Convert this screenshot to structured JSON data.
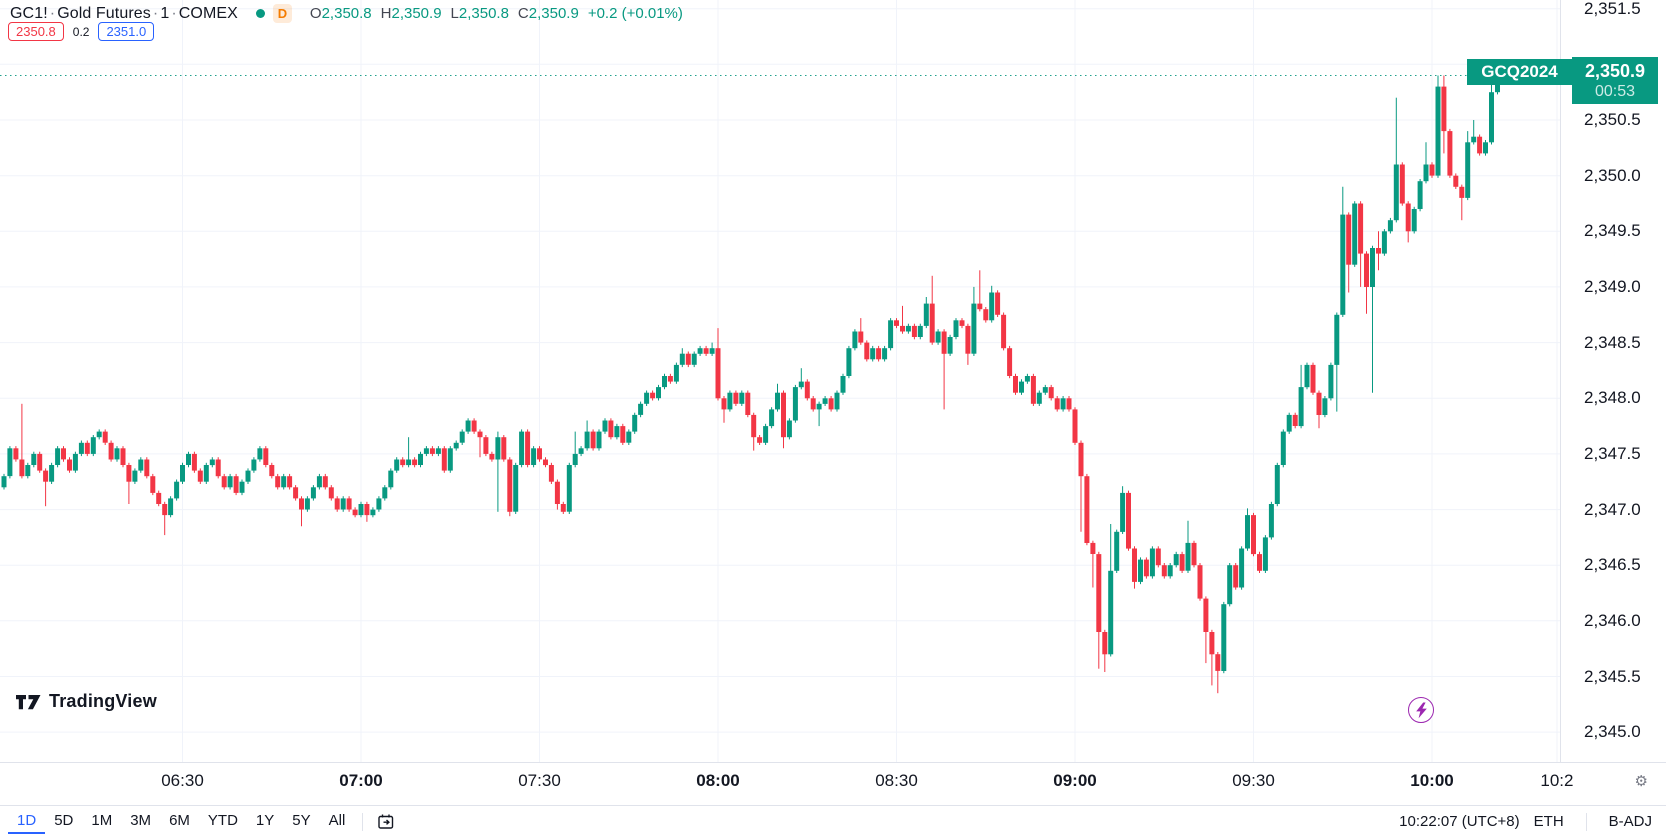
{
  "header": {
    "symbol": "GC1!",
    "sep": "·",
    "name": "Gold Futures",
    "interval": "1",
    "exchange": "COMEX",
    "d_badge": "D",
    "ohlc": {
      "o_label": "O",
      "o": "2,350.8",
      "h_label": "H",
      "h": "2,350.9",
      "l_label": "L",
      "l": "2,350.8",
      "c_label": "C",
      "c": "2,350.9",
      "change": "+0.2 (+0.01%)"
    },
    "bid": "2350.8",
    "spread": "0.2",
    "ask": "2351.0"
  },
  "price_label": {
    "contract": "GCQ2024",
    "price": "2,350.9",
    "countdown": "00:53"
  },
  "logo": {
    "text": "TradingView"
  },
  "toolbar": {
    "ranges": [
      "1D",
      "5D",
      "1M",
      "3M",
      "6M",
      "YTD",
      "1Y",
      "5Y",
      "All"
    ],
    "active": "1D",
    "clock": "10:22:07 (UTC+8)",
    "session": "ETH",
    "adjustment": "B-ADJ"
  },
  "colors": {
    "up": "#089981",
    "down": "#f23645",
    "grid": "#f0f3fa",
    "axis_border": "#e0e3eb",
    "axis_text": "#131722",
    "accent_blue": "#2962ff",
    "label_bg": "#089981",
    "badge_orange": "#f57c00",
    "purple": "#9c27b0",
    "muted": "#787b86"
  },
  "chart_data": {
    "type": "candlestick",
    "symbol": "GC1!",
    "contract": "GCQ2024",
    "interval_minutes": 1,
    "start_time": "06:00",
    "ylim": [
      2345.0,
      2351.5
    ],
    "grid": true,
    "last_price": 2350.9,
    "last_price_line": {
      "price": 2350.9,
      "style": "dotted"
    },
    "price_axis_ticks": [
      {
        "label": "2,351.5",
        "value": 2351.5
      },
      {
        "label": "2,351.0",
        "value": 2351.0
      },
      {
        "label": "2,350.5",
        "value": 2350.5
      },
      {
        "label": "2,350.0",
        "value": 2350.0
      },
      {
        "label": "2,349.5",
        "value": 2349.5
      },
      {
        "label": "2,349.0",
        "value": 2349.0
      },
      {
        "label": "2,348.5",
        "value": 2348.5
      },
      {
        "label": "2,348.0",
        "value": 2348.0
      },
      {
        "label": "2,347.5",
        "value": 2347.5
      },
      {
        "label": "2,347.0",
        "value": 2347.0
      },
      {
        "label": "2,346.5",
        "value": 2346.5
      },
      {
        "label": "2,346.0",
        "value": 2346.0
      },
      {
        "label": "2,345.5",
        "value": 2345.5
      },
      {
        "label": "2,345.0",
        "value": 2345.0
      }
    ],
    "time_axis_ticks": [
      {
        "label": "06:30",
        "index": 30,
        "bold": false
      },
      {
        "label": "07:00",
        "index": 60,
        "bold": true
      },
      {
        "label": "07:30",
        "index": 90,
        "bold": false
      },
      {
        "label": "08:00",
        "index": 120,
        "bold": true
      },
      {
        "label": "08:30",
        "index": 150,
        "bold": false
      },
      {
        "label": "09:00",
        "index": 180,
        "bold": true
      },
      {
        "label": "09:30",
        "index": 210,
        "bold": false
      },
      {
        "label": "10:00",
        "index": 240,
        "bold": true
      },
      {
        "label": "10:2",
        "index": 261,
        "bold": false
      }
    ],
    "open_first": 2347.2,
    "closes": [
      2347.3,
      2347.55,
      2347.45,
      2347.3,
      2347.4,
      2347.5,
      2347.35,
      2347.25,
      2347.4,
      2347.55,
      2347.45,
      2347.35,
      2347.5,
      2347.6,
      2347.5,
      2347.65,
      2347.7,
      2347.6,
      2347.45,
      2347.55,
      2347.4,
      2347.25,
      2347.35,
      2347.45,
      2347.3,
      2347.15,
      2347.05,
      2346.95,
      2347.1,
      2347.25,
      2347.4,
      2347.5,
      2347.35,
      2347.25,
      2347.4,
      2347.45,
      2347.3,
      2347.2,
      2347.3,
      2347.15,
      2347.25,
      2347.35,
      2347.45,
      2347.55,
      2347.4,
      2347.3,
      2347.2,
      2347.3,
      2347.2,
      2347.1,
      2347.0,
      2347.1,
      2347.2,
      2347.3,
      2347.2,
      2347.1,
      2347.0,
      2347.1,
      2347.0,
      2346.95,
      2347.05,
      2346.95,
      2347.0,
      2347.1,
      2347.2,
      2347.35,
      2347.45,
      2347.4,
      2347.45,
      2347.4,
      2347.5,
      2347.55,
      2347.5,
      2347.55,
      2347.35,
      2347.55,
      2347.6,
      2347.7,
      2347.8,
      2347.7,
      2347.65,
      2347.5,
      2347.45,
      2347.65,
      2347.45,
      2346.98,
      2347.4,
      2347.7,
      2347.4,
      2347.55,
      2347.45,
      2347.4,
      2347.25,
      2347.05,
      2346.98,
      2347.4,
      2347.5,
      2347.55,
      2347.7,
      2347.55,
      2347.7,
      2347.8,
      2347.65,
      2347.75,
      2347.6,
      2347.7,
      2347.85,
      2347.95,
      2348.05,
      2348.0,
      2348.1,
      2348.2,
      2348.15,
      2348.3,
      2348.4,
      2348.3,
      2348.4,
      2348.45,
      2348.4,
      2348.45,
      2348.0,
      2347.9,
      2348.05,
      2347.95,
      2348.05,
      2347.85,
      2347.65,
      2347.6,
      2347.75,
      2347.9,
      2348.05,
      2347.65,
      2347.8,
      2348.1,
      2348.15,
      2348.0,
      2347.9,
      2347.95,
      2348.0,
      2347.9,
      2348.05,
      2348.2,
      2348.45,
      2348.6,
      2348.5,
      2348.35,
      2348.45,
      2348.35,
      2348.45,
      2348.7,
      2348.65,
      2348.6,
      2348.65,
      2348.55,
      2348.65,
      2348.85,
      2348.5,
      2348.6,
      2348.4,
      2348.55,
      2348.7,
      2348.65,
      2348.4,
      2348.85,
      2348.8,
      2348.7,
      2348.95,
      2348.75,
      2348.45,
      2348.2,
      2348.05,
      2348.15,
      2348.2,
      2347.95,
      2348.05,
      2348.1,
      2348.0,
      2347.9,
      2348.0,
      2347.9,
      2347.6,
      2347.3,
      2346.7,
      2346.6,
      2345.9,
      2345.7,
      2346.45,
      2346.8,
      2347.15,
      2346.65,
      2346.35,
      2346.55,
      2346.4,
      2346.65,
      2346.5,
      2346.4,
      2346.5,
      2346.6,
      2346.45,
      2346.7,
      2346.5,
      2346.2,
      2345.9,
      2345.7,
      2345.55,
      2346.15,
      2346.5,
      2346.3,
      2346.65,
      2346.95,
      2346.6,
      2346.45,
      2346.75,
      2347.05,
      2347.4,
      2347.7,
      2347.85,
      2347.75,
      2348.1,
      2348.3,
      2348.05,
      2347.85,
      2348.0,
      2348.3,
      2348.75,
      2349.65,
      2349.2,
      2349.75,
      2349.3,
      2349.0,
      2349.35,
      2349.3,
      2349.5,
      2349.6,
      2350.1,
      2349.75,
      2349.5,
      2349.7,
      2349.95,
      2350.1,
      2350.0,
      2350.8,
      2350.4,
      2350.0,
      2349.9,
      2349.8,
      2350.3,
      2350.35,
      2350.2,
      2350.3,
      2350.75,
      2350.9
    ],
    "wicks": {
      "3": [
        0.5,
        0.02
      ],
      "7": [
        0.02,
        0.22
      ],
      "21": [
        0.02,
        0.2
      ],
      "27": [
        0.02,
        0.18
      ],
      "50": [
        0.02,
        0.15
      ],
      "61": [
        0.02,
        0.06
      ],
      "68": [
        0.2,
        0.02
      ],
      "80": [
        0.02,
        0.18
      ],
      "83": [
        0.05,
        0.47
      ],
      "85": [
        0.02,
        0.04
      ],
      "93": [
        0.02,
        0.05
      ],
      "96": [
        0.2,
        0.02
      ],
      "98": [
        0.1,
        0.02
      ],
      "114": [
        0.05,
        0.02
      ],
      "119": [
        0.05,
        0.02
      ],
      "120": [
        0.18,
        0.02
      ],
      "121": [
        0.02,
        0.12
      ],
      "126": [
        0.02,
        0.12
      ],
      "130": [
        0.08,
        0.02
      ],
      "131": [
        0.02,
        0.1
      ],
      "134": [
        0.12,
        0.02
      ],
      "137": [
        0.02,
        0.15
      ],
      "144": [
        0.12,
        0.02
      ],
      "151": [
        0.18,
        0.02
      ],
      "155": [
        0.06,
        0.02
      ],
      "156": [
        0.25,
        0.02
      ],
      "158": [
        0.02,
        0.5
      ],
      "162": [
        0.02,
        0.1
      ],
      "163": [
        0.15,
        0.02
      ],
      "164": [
        0.3,
        0.02
      ],
      "166": [
        0.06,
        0.02
      ],
      "181": [
        0.02,
        0.5
      ],
      "183": [
        0.02,
        0.3
      ],
      "184": [
        0.02,
        0.33
      ],
      "185": [
        0.02,
        0.16
      ],
      "186": [
        0.42,
        0.02
      ],
      "188": [
        0.06,
        0.02
      ],
      "190": [
        0.02,
        0.06
      ],
      "199": [
        0.2,
        0.02
      ],
      "202": [
        0.02,
        0.28
      ],
      "203": [
        0.02,
        0.28
      ],
      "204": [
        0.02,
        0.2
      ],
      "209": [
        0.06,
        0.02
      ],
      "218": [
        0.2,
        0.02
      ],
      "221": [
        0.02,
        0.12
      ],
      "224": [
        0.02,
        0.42
      ],
      "225": [
        0.25,
        0.02
      ],
      "226": [
        0.02,
        0.25
      ],
      "228": [
        0.02,
        0.3
      ],
      "229": [
        0.02,
        0.24
      ],
      "230": [
        0.02,
        0.95
      ],
      "231": [
        0.15,
        0.15
      ],
      "234": [
        0.6,
        0.02
      ],
      "236": [
        0.02,
        0.1
      ],
      "239": [
        0.2,
        0.02
      ],
      "241": [
        0.1,
        0.02
      ],
      "242": [
        0.1,
        0.2
      ],
      "245": [
        0.02,
        0.2
      ],
      "246": [
        0.1,
        0.02
      ],
      "247": [
        0.15,
        0.02
      ],
      "250": [
        0.07,
        0.02
      ]
    }
  }
}
